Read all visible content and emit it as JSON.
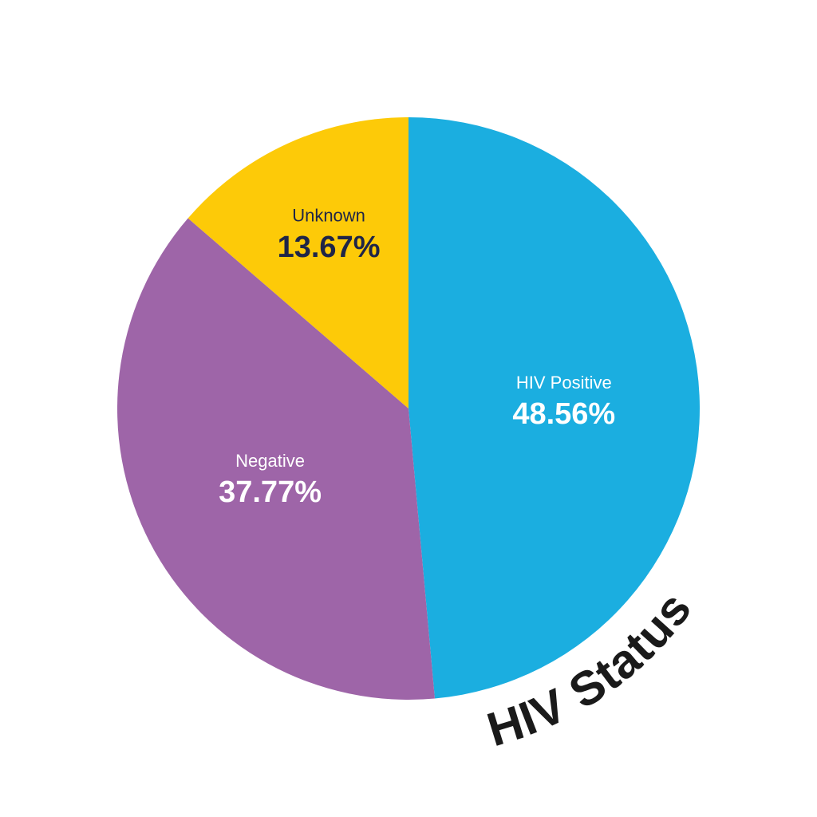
{
  "chart_data": {
    "type": "pie",
    "title": "HIV Status",
    "categories": [
      "HIV Positive",
      "Negative",
      "Unknown"
    ],
    "values": [
      48.56,
      37.77,
      13.67
    ],
    "value_labels": [
      "48.56%",
      "37.77%",
      "13.67%"
    ],
    "colors": [
      "#1baee0",
      "#9e65a8",
      "#fdca08"
    ],
    "label_colors": [
      "#ffffff",
      "#ffffff",
      "#1f2547"
    ]
  }
}
